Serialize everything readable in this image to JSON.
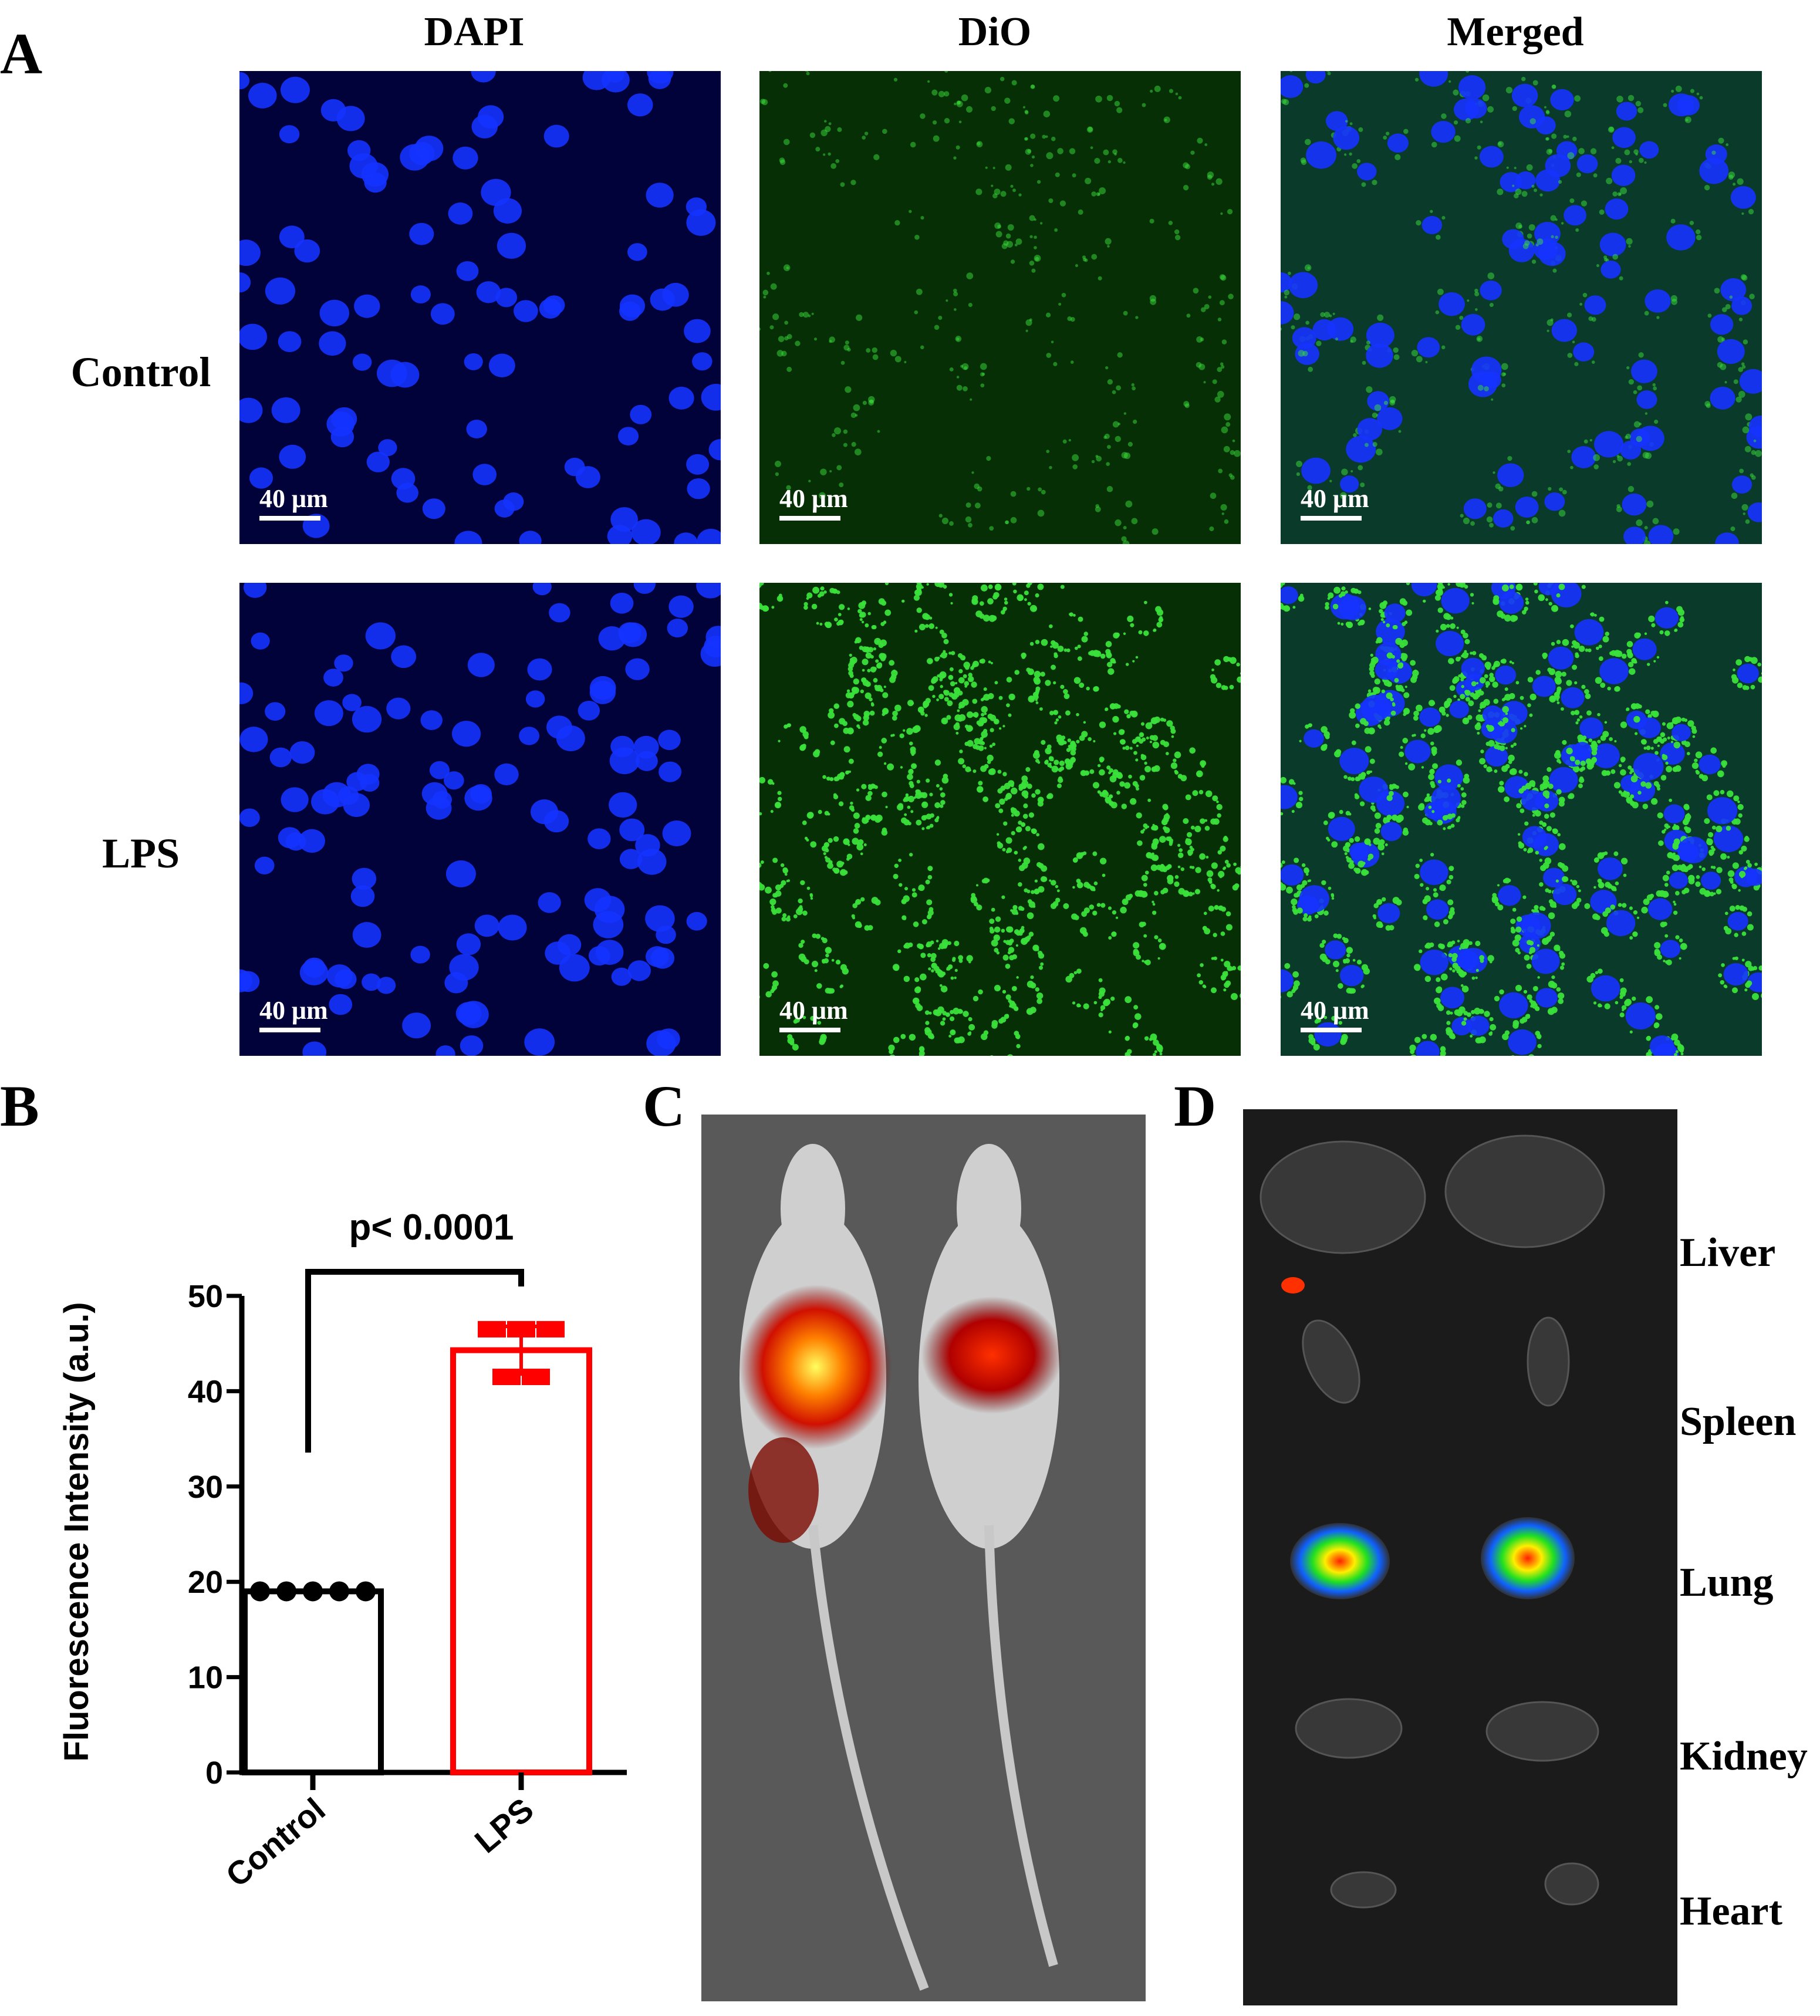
{
  "panels": {
    "a": {
      "letter": "A",
      "columns": [
        "DAPI",
        "DiO",
        "Merged"
      ],
      "rows": [
        "Control",
        "LPS"
      ],
      "scale_bar": "40 μm"
    },
    "b": {
      "letter": "B"
    },
    "c": {
      "letter": "C"
    },
    "d": {
      "letter": "D",
      "organs": [
        "Liver",
        "Spleen",
        "Lung",
        "Kidney",
        "Heart"
      ]
    }
  },
  "colors": {
    "control": "#000000",
    "lps": "#ff0000",
    "dapi": "#0a1fff",
    "dio": "#2fd12f"
  },
  "chart_data": {
    "type": "bar",
    "categories": [
      "Control",
      "LPS"
    ],
    "values": [
      19,
      44.3
    ],
    "error": [
      0,
      2.5
    ],
    "points": [
      [
        19,
        19,
        19,
        19,
        19
      ],
      [
        46.5,
        46.5,
        46.5,
        41.5,
        41.5
      ]
    ],
    "ylabel": "Fluorescence Intensity (a.u.)",
    "xlabel": "",
    "ylim": [
      0,
      50
    ],
    "yticks": [
      "0",
      "10",
      "20",
      "30",
      "40",
      "50"
    ],
    "annotation": "p< 0.0001",
    "grid": false
  }
}
